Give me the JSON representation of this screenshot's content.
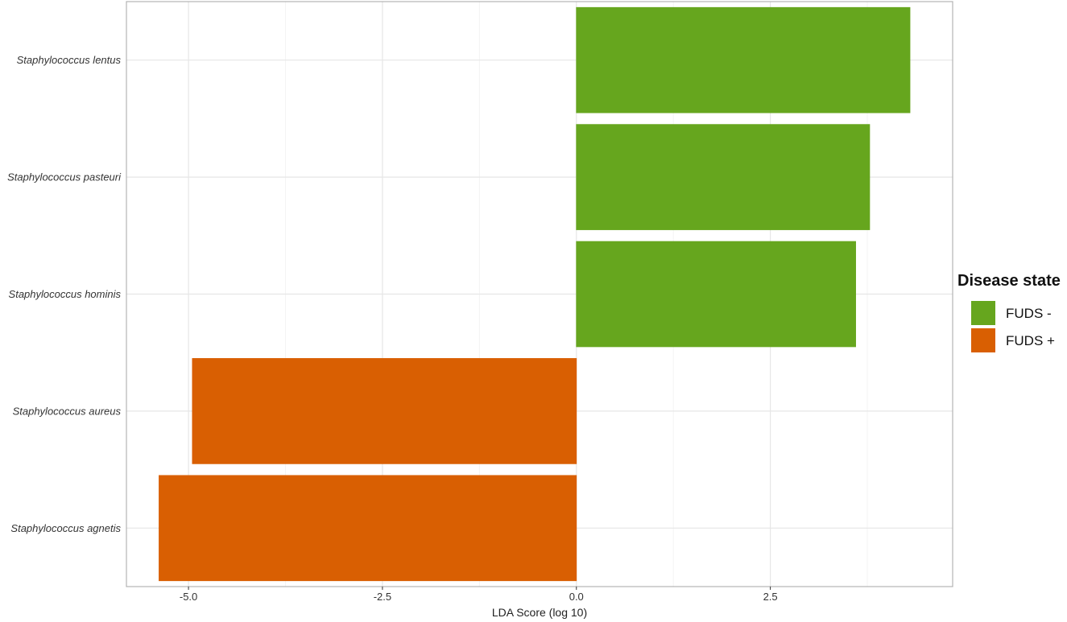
{
  "chart_data": {
    "type": "bar",
    "orientation": "horizontal",
    "categories": [
      "Staphylococcus lentus",
      "Staphylococcus pasteuri",
      "Staphylococcus hominis",
      "Staphylococcus aureus",
      "Staphylococcus agnetis"
    ],
    "values": [
      4.3,
      3.78,
      3.6,
      -4.95,
      -5.38
    ],
    "groups": [
      "FUDS -",
      "FUDS -",
      "FUDS -",
      "FUDS +",
      "FUDS +"
    ],
    "xlabel": "LDA Score (log 10)",
    "ylabel": "",
    "xlim": [
      -5.8,
      4.85
    ],
    "x_ticks": [
      -5.0,
      -2.5,
      0.0,
      2.5
    ],
    "x_tick_labels": [
      "-5.0",
      "-2.5",
      "0.0",
      "2.5"
    ],
    "grid": true,
    "legend": {
      "title": "Disease state",
      "placement": "right",
      "entries": [
        {
          "label": "FUDS -",
          "color": "#66a61e"
        },
        {
          "label": "FUDS +",
          "color": "#d95f02"
        }
      ]
    },
    "colors": {
      "FUDS -": "#66a61e",
      "FUDS +": "#d95f02"
    }
  }
}
